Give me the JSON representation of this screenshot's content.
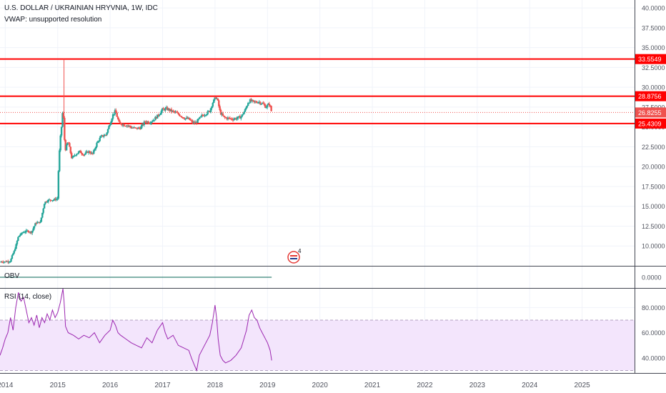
{
  "header": {
    "title": "U.S. DOLLAR / UKRAINIAN HRYVNIA, 1W, IDC",
    "vwap": "VWAP: unsupported resolution"
  },
  "colors": {
    "up": "#26a69a",
    "down": "#ef5350",
    "level_line": "#ff0000",
    "rsi_line": "#9c27b0",
    "rsi_band": "#f3e5fc",
    "obv_line": "#056656",
    "grid": "#f0f3fa",
    "axis_text": "#50535e"
  },
  "chart_data": [
    {
      "type": "candlestick",
      "title": "U.S. DOLLAR / UKRAINIAN HRYVNIA, 1W, IDC",
      "ylim": [
        7.5,
        41.0
      ],
      "y_ticks": [
        "10.0000",
        "12.5000",
        "15.0000",
        "17.5000",
        "20.0000",
        "22.5000",
        "25.0000",
        "27.5000",
        "30.0000",
        "32.5000",
        "35.0000",
        "37.5000",
        "40.0000"
      ],
      "x_ticks": [
        "2014",
        "2015",
        "2016",
        "2017",
        "2018",
        "2019",
        "2020",
        "2021",
        "2022",
        "2023",
        "2024",
        "2025"
      ],
      "xlim": [
        2013.9,
        2026.0
      ],
      "price_path": [
        [
          2013.9,
          7.99
        ],
        [
          2014.1,
          8.05
        ],
        [
          2014.12,
          8.6
        ],
        [
          2014.18,
          9.5
        ],
        [
          2014.25,
          11.2
        ],
        [
          2014.33,
          11.7
        ],
        [
          2014.42,
          11.9
        ],
        [
          2014.5,
          11.7
        ],
        [
          2014.58,
          12.9
        ],
        [
          2014.67,
          13.0
        ],
        [
          2014.75,
          15.5
        ],
        [
          2014.83,
          15.8
        ],
        [
          2014.92,
          15.8
        ],
        [
          2015.0,
          16.0
        ],
        [
          2015.02,
          20.5
        ],
        [
          2015.05,
          23.5
        ],
        [
          2015.08,
          25.5
        ],
        [
          2015.1,
          27.5
        ],
        [
          2015.12,
          25.0
        ],
        [
          2015.14,
          22.0
        ],
        [
          2015.2,
          23.2
        ],
        [
          2015.27,
          21.0
        ],
        [
          2015.33,
          21.5
        ],
        [
          2015.42,
          21.9
        ],
        [
          2015.5,
          21.5
        ],
        [
          2015.58,
          21.9
        ],
        [
          2015.67,
          21.6
        ],
        [
          2015.75,
          23.0
        ],
        [
          2015.83,
          23.8
        ],
        [
          2015.92,
          24.0
        ],
        [
          2016.0,
          25.5
        ],
        [
          2016.05,
          26.5
        ],
        [
          2016.1,
          27.0
        ],
        [
          2016.17,
          25.5
        ],
        [
          2016.25,
          25.3
        ],
        [
          2016.33,
          25.2
        ],
        [
          2016.42,
          24.9
        ],
        [
          2016.5,
          24.8
        ],
        [
          2016.58,
          24.9
        ],
        [
          2016.67,
          25.7
        ],
        [
          2016.75,
          25.6
        ],
        [
          2016.83,
          25.9
        ],
        [
          2016.92,
          26.5
        ],
        [
          2017.0,
          27.2
        ],
        [
          2017.08,
          27.3
        ],
        [
          2017.17,
          27.0
        ],
        [
          2017.25,
          26.8
        ],
        [
          2017.33,
          26.5
        ],
        [
          2017.42,
          26.1
        ],
        [
          2017.5,
          26.0
        ],
        [
          2017.58,
          25.5
        ],
        [
          2017.63,
          25.5
        ],
        [
          2017.67,
          25.8
        ],
        [
          2017.75,
          26.4
        ],
        [
          2017.83,
          26.7
        ],
        [
          2017.9,
          27.0
        ],
        [
          2017.95,
          28.0
        ],
        [
          2018.02,
          28.8
        ],
        [
          2018.05,
          28.3
        ],
        [
          2018.1,
          26.8
        ],
        [
          2018.17,
          26.2
        ],
        [
          2018.25,
          26.1
        ],
        [
          2018.33,
          26.0
        ],
        [
          2018.42,
          26.1
        ],
        [
          2018.5,
          26.3
        ],
        [
          2018.58,
          27.2
        ],
        [
          2018.63,
          28.1
        ],
        [
          2018.67,
          28.3
        ],
        [
          2018.75,
          28.1
        ],
        [
          2018.83,
          28.2
        ],
        [
          2018.88,
          28.0
        ],
        [
          2018.92,
          27.9
        ],
        [
          2018.97,
          27.5
        ],
        [
          2019.0,
          27.7
        ],
        [
          2019.04,
          27.9
        ],
        [
          2019.08,
          26.83
        ]
      ],
      "spike": {
        "x": 2015.12,
        "high": 33.5549
      },
      "levels": [
        {
          "value": 33.5549,
          "label": "33.5549"
        },
        {
          "value": 28.8756,
          "label": "28.8756"
        },
        {
          "value": 25.4309,
          "label": "25.4309"
        }
      ],
      "current": {
        "value": 26.8255,
        "label": "26.8255"
      },
      "annotation_badge": "4"
    },
    {
      "type": "line",
      "title": "OBV",
      "ylim": [
        -0.5,
        0.5
      ],
      "y_ticks": [
        "0.0000"
      ],
      "x": [
        2013.9,
        2019.08
      ],
      "values": [
        0,
        0
      ]
    },
    {
      "type": "line",
      "title": "RSI (14, close)",
      "ylim": [
        28,
        95
      ],
      "y_ticks": [
        "40.0000",
        "60.0000",
        "80.0000"
      ],
      "band": [
        30,
        70
      ],
      "x": [
        2013.9,
        2013.95,
        2014.0,
        2014.05,
        2014.1,
        2014.15,
        2014.2,
        2014.25,
        2014.3,
        2014.35,
        2014.4,
        2014.45,
        2014.5,
        2014.55,
        2014.6,
        2014.65,
        2014.7,
        2014.75,
        2014.8,
        2014.85,
        2014.9,
        2014.95,
        2015.0,
        2015.05,
        2015.1,
        2015.12,
        2015.15,
        2015.2,
        2015.3,
        2015.4,
        2015.5,
        2015.6,
        2015.7,
        2015.8,
        2015.9,
        2016.0,
        2016.05,
        2016.1,
        2016.15,
        2016.2,
        2016.3,
        2016.4,
        2016.5,
        2016.6,
        2016.7,
        2016.8,
        2016.9,
        2017.0,
        2017.05,
        2017.1,
        2017.2,
        2017.3,
        2017.4,
        2017.5,
        2017.55,
        2017.6,
        2017.65,
        2017.7,
        2017.8,
        2017.9,
        2017.95,
        2018.0,
        2018.03,
        2018.06,
        2018.1,
        2018.15,
        2018.2,
        2018.3,
        2018.4,
        2018.45,
        2018.5,
        2018.55,
        2018.6,
        2018.65,
        2018.7,
        2018.75,
        2018.8,
        2018.85,
        2018.9,
        2018.95,
        2019.0,
        2019.05,
        2019.08
      ],
      "values": [
        42,
        48,
        55,
        60,
        72,
        62,
        80,
        92,
        85,
        88,
        78,
        68,
        72,
        66,
        74,
        64,
        72,
        68,
        75,
        70,
        78,
        72,
        76,
        84,
        95,
        86,
        65,
        60,
        58,
        55,
        58,
        56,
        60,
        52,
        58,
        62,
        70,
        66,
        60,
        58,
        55,
        52,
        50,
        48,
        56,
        52,
        62,
        68,
        60,
        55,
        58,
        50,
        48,
        46,
        40,
        35,
        30,
        42,
        50,
        58,
        68,
        82,
        72,
        55,
        42,
        38,
        36,
        38,
        42,
        45,
        48,
        55,
        62,
        74,
        78,
        72,
        70,
        64,
        60,
        56,
        52,
        46,
        38
      ]
    }
  ]
}
